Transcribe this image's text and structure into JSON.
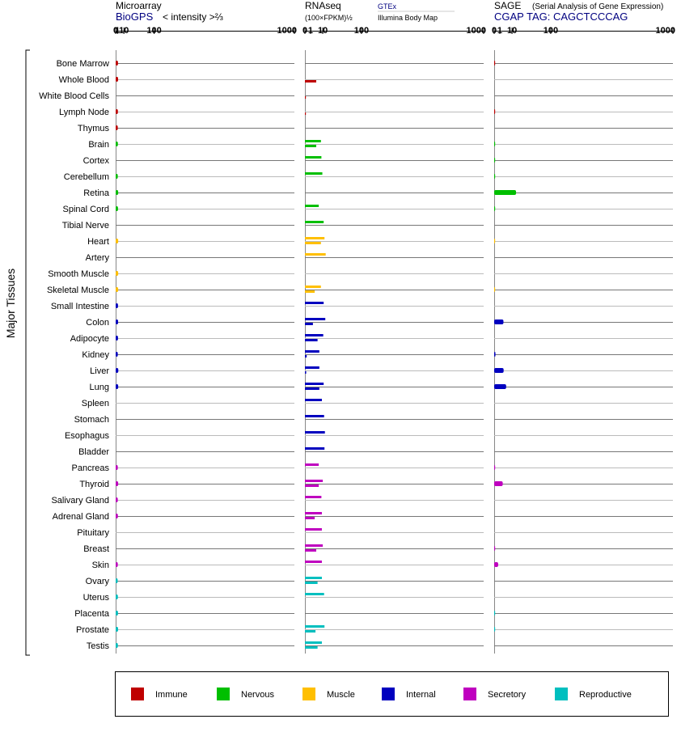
{
  "colors": {
    "Immune": "#bf0000",
    "Nervous": "#00bf00",
    "Muscle": "#ffbf00",
    "Internal": "#0000bf",
    "Secretory": "#bf00bf",
    "Reproductive": "#00bfbf"
  },
  "side_label": "Major Tissues",
  "chart_data": {
    "type": "bar",
    "orientation": "horizontal",
    "scale": "power",
    "categories": [
      "Bone Marrow",
      "Whole Blood",
      "White Blood Cells",
      "Lymph Node",
      "Thymus",
      "Brain",
      "Cortex",
      "Cerebellum",
      "Retina",
      "Spinal Cord",
      "Tibial Nerve",
      "Heart",
      "Artery",
      "Smooth Muscle",
      "Skeletal Muscle",
      "Small Intestine",
      "Colon",
      "Adipocyte",
      "Kidney",
      "Liver",
      "Lung",
      "Spleen",
      "Stomach",
      "Esophagus",
      "Bladder",
      "Pancreas",
      "Thyroid",
      "Salivary Gland",
      "Adrenal Gland",
      "Pituitary",
      "Breast",
      "Skin",
      "Ovary",
      "Uterus",
      "Placenta",
      "Prostate",
      "Testis"
    ],
    "systems": [
      "Immune",
      "Immune",
      "Immune",
      "Immune",
      "Immune",
      "Nervous",
      "Nervous",
      "Nervous",
      "Nervous",
      "Nervous",
      "Nervous",
      "Muscle",
      "Muscle",
      "Muscle",
      "Muscle",
      "Internal",
      "Internal",
      "Internal",
      "Internal",
      "Internal",
      "Internal",
      "Internal",
      "Internal",
      "Internal",
      "Internal",
      "Secretory",
      "Secretory",
      "Secretory",
      "Secretory",
      "Secretory",
      "Secretory",
      "Secretory",
      "Reproductive",
      "Reproductive",
      "Reproductive",
      "Reproductive",
      "Reproductive"
    ],
    "panels": [
      {
        "id": "microarray",
        "title": "Microarray",
        "source": "BioGPS",
        "subtitle": "< intensity >⅔",
        "ticks": [
          "0",
          "1",
          "10",
          "100",
          "1000"
        ],
        "tick_values": [
          0,
          1,
          10,
          100,
          1000
        ],
        "exponent": 0.6667,
        "max": 1000,
        "series": [
          {
            "name": "BioGPS",
            "values": [
              1.5,
              1.6,
              null,
              1.4,
              1.3,
              1.4,
              null,
              1.3,
              1.7,
              1.5,
              null,
              1.7,
              null,
              1.7,
              1.7,
              1.5,
              1.6,
              1.5,
              1.3,
              1.8,
              1.7,
              null,
              null,
              null,
              null,
              1.3,
              1.7,
              1.3,
              1.4,
              null,
              null,
              1.3,
              1.2,
              1.4,
              1.5,
              1.6,
              1.4
            ]
          }
        ]
      },
      {
        "id": "rnaseq",
        "title": "RNAseq",
        "subtitle": "(100×FPKM)½",
        "legend_top": "GTEx",
        "legend_bottom": "Illumina Body Map",
        "ticks": [
          "0",
          "1",
          "10",
          "100",
          "1000"
        ],
        "tick_values": [
          0,
          1,
          10,
          100,
          1000
        ],
        "exponent": 0.5,
        "max": 1000,
        "series": [
          {
            "name": "GTEx",
            "values": [
              null,
              null,
              null,
              null,
              null,
              null,
              null,
              null,
              null,
              null,
              null,
              null,
              null,
              null,
              null,
              null,
              null,
              null,
              null,
              null,
              null,
              null,
              null,
              null,
              null,
              null,
              null,
              null,
              null,
              null,
              null,
              null,
              null,
              null,
              null,
              null,
              null
            ]
          },
          {
            "name": "GTEx",
            "values": [
              null,
              null,
              null,
              null,
              null,
              8,
              8.5,
              9.5,
              null,
              6,
              11,
              12,
              13.5,
              null,
              8,
              11,
              13,
              10.5,
              6.5,
              6.5,
              11,
              9,
              11.5,
              12.5,
              12,
              6,
              10,
              8.5,
              9,
              9,
              10,
              9,
              9,
              11.5,
              null,
              12,
              9
            ]
          },
          {
            "name": "Illumina Body Map",
            "values": [
              null,
              4,
              0.01,
              0.01,
              null,
              4,
              null,
              null,
              null,
              null,
              null,
              8,
              null,
              null,
              3,
              null,
              2,
              5,
              0.1,
              0.05,
              6.5,
              null,
              null,
              null,
              null,
              null,
              6,
              null,
              3,
              null,
              4,
              null,
              5,
              null,
              null,
              3.5,
              5
            ]
          }
        ]
      },
      {
        "id": "sage",
        "title": "SAGE",
        "subtitle_small": "(Serial Analysis of Gene Expression)",
        "source": "CGAP TAG: CAGCTCCCAG",
        "ticks": [
          "0",
          "1",
          "10",
          "100",
          "1000"
        ],
        "tick_values": [
          0,
          1,
          10,
          100,
          1000
        ],
        "exponent": 0.5,
        "max": 1000,
        "series": [
          {
            "name": "SAGE",
            "values": [
              0.02,
              null,
              null,
              0.02,
              null,
              0.01,
              0.01,
              0.01,
              15,
              0.01,
              null,
              0.005,
              null,
              null,
              0.005,
              null,
              2.7,
              null,
              0.05,
              2.8,
              4.5,
              null,
              null,
              null,
              null,
              0.02,
              2.3,
              null,
              null,
              null,
              0.02,
              0.5,
              null,
              null,
              0.01,
              0.01,
              null
            ]
          }
        ]
      }
    ],
    "legend": [
      "Immune",
      "Nervous",
      "Muscle",
      "Internal",
      "Secretory",
      "Reproductive"
    ]
  }
}
